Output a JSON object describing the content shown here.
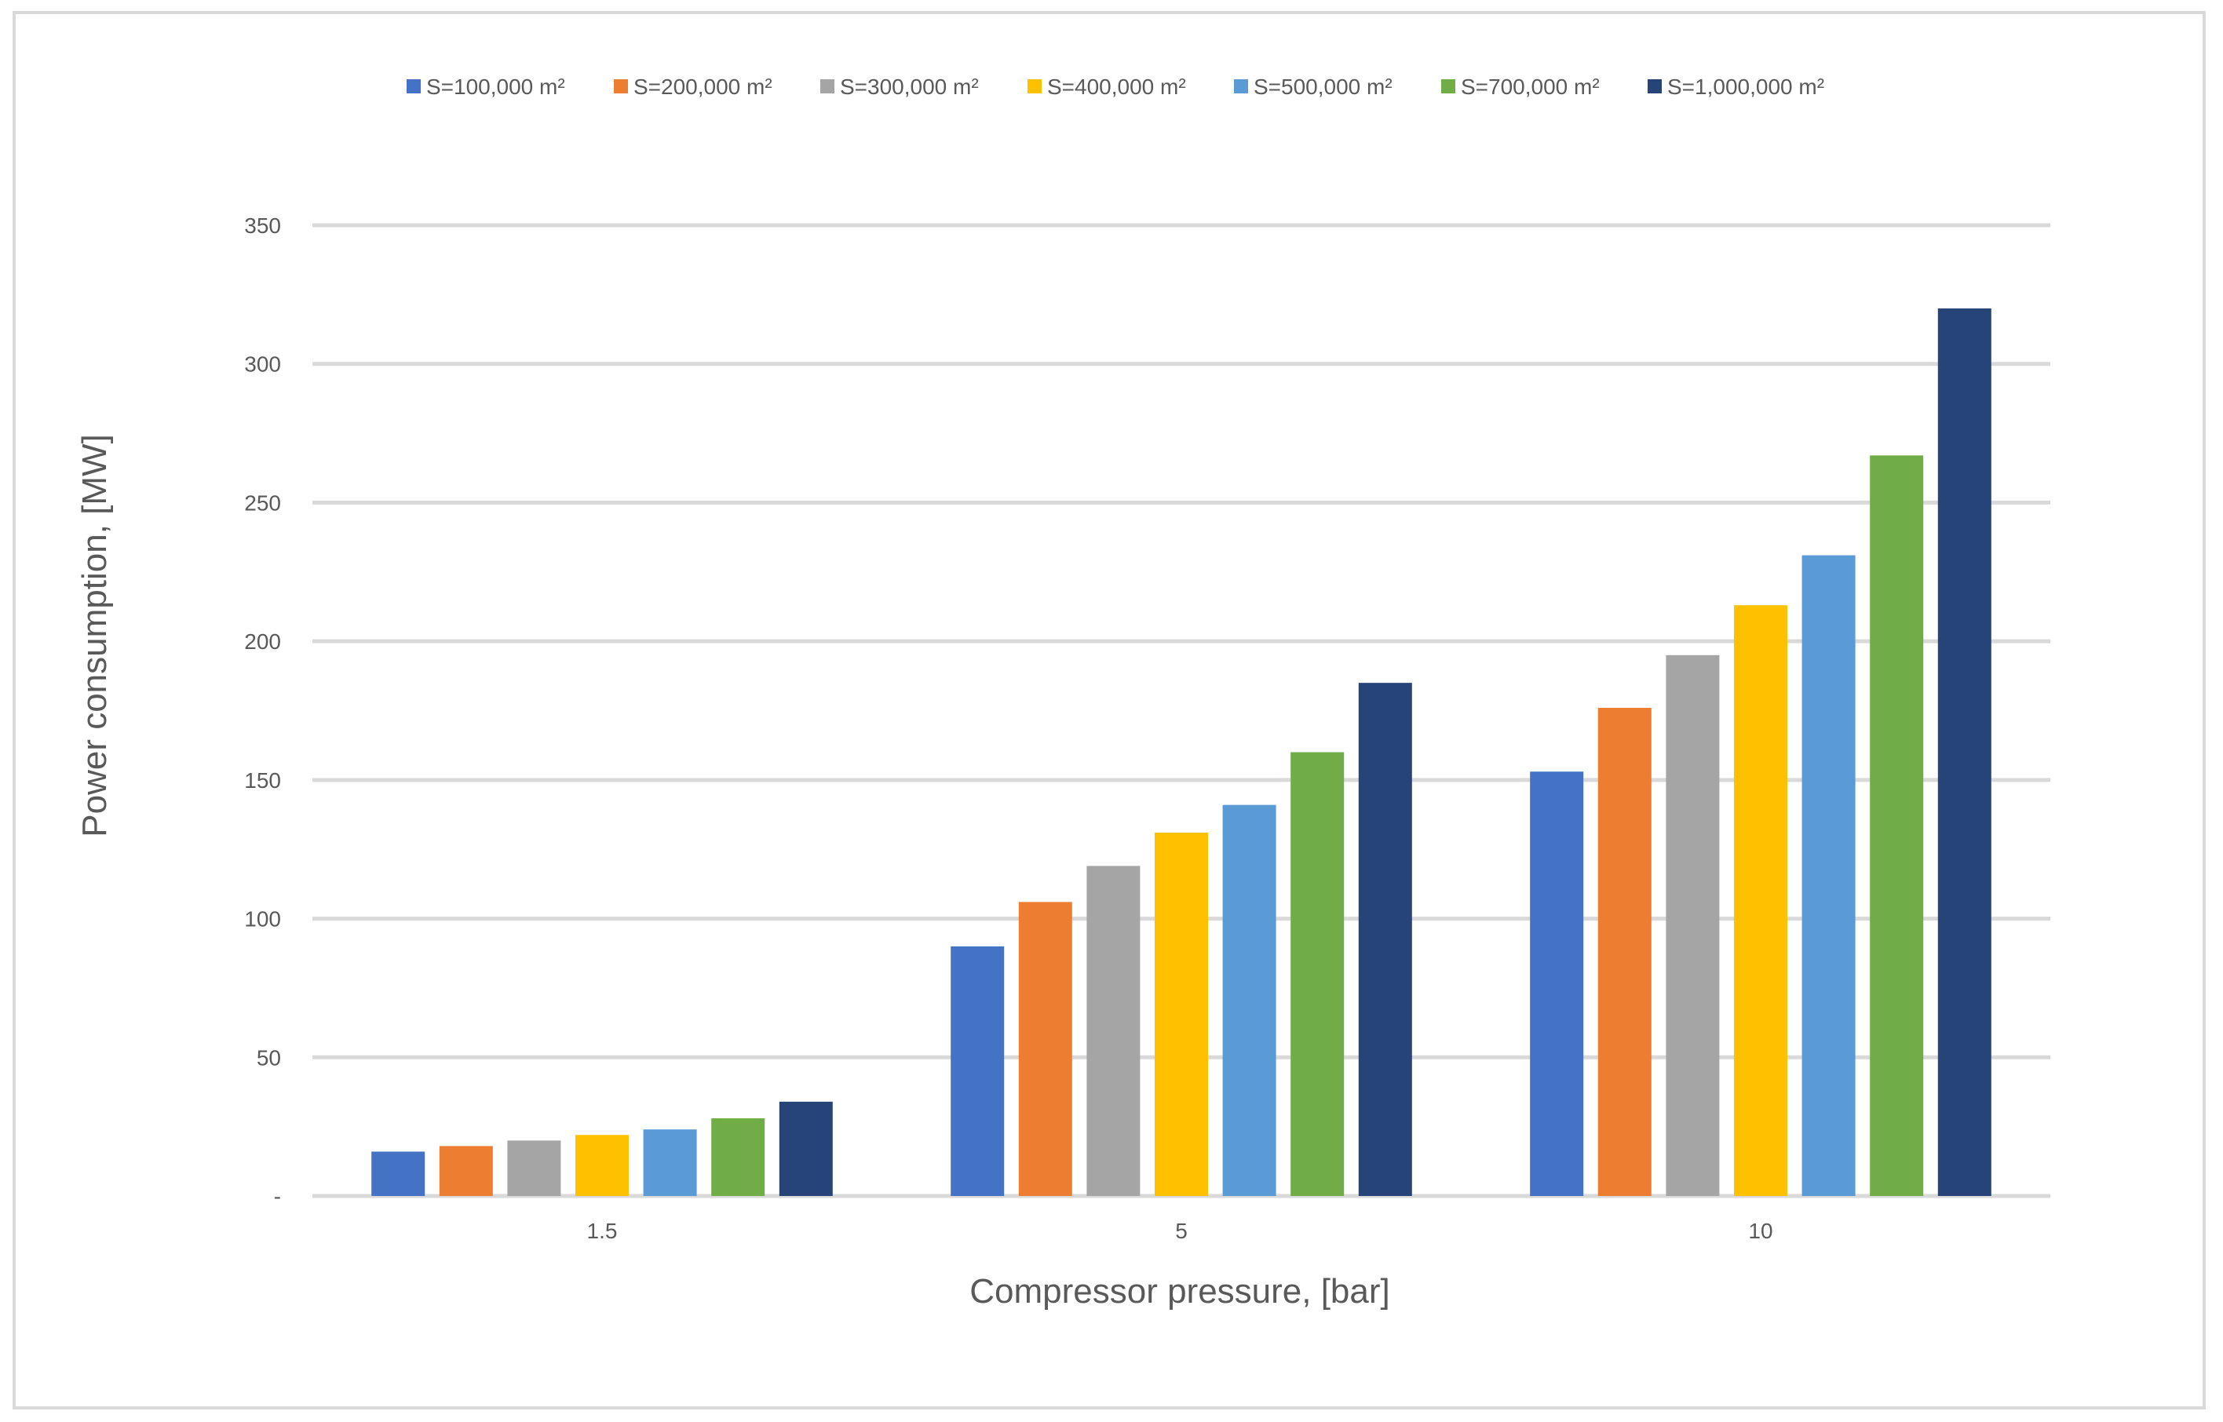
{
  "chart_data": {
    "type": "bar",
    "title": "",
    "xlabel": "Compressor pressure, [bar]",
    "ylabel": "Power consumption, [MW]",
    "categories": [
      "1.5",
      "5",
      "10"
    ],
    "ylim": [
      0,
      350
    ],
    "yticks": [
      0,
      50,
      100,
      150,
      200,
      250,
      300,
      350
    ],
    "ytick_labels": [
      "-",
      "50",
      "100",
      "150",
      "200",
      "250",
      "300",
      "350"
    ],
    "grid": true,
    "legend_position": "top",
    "series": [
      {
        "name": "S=100,000 m²",
        "color": "#4472C4",
        "values": [
          16,
          90,
          153
        ]
      },
      {
        "name": "S=200,000 m²",
        "color": "#ED7D31",
        "values": [
          18,
          106,
          176
        ]
      },
      {
        "name": "S=300,000 m²",
        "color": "#A5A5A5",
        "values": [
          20,
          119,
          195
        ]
      },
      {
        "name": "S=400,000 m²",
        "color": "#FFC000",
        "values": [
          22,
          131,
          213
        ]
      },
      {
        "name": "S=500,000 m²",
        "color": "#5B9BD5",
        "values": [
          24,
          141,
          231
        ]
      },
      {
        "name": "S=700,000 m²",
        "color": "#70AD47",
        "values": [
          28,
          160,
          267
        ]
      },
      {
        "name": "S=1,000,000 m²",
        "color": "#264478",
        "values": [
          34,
          185,
          320
        ]
      }
    ]
  }
}
